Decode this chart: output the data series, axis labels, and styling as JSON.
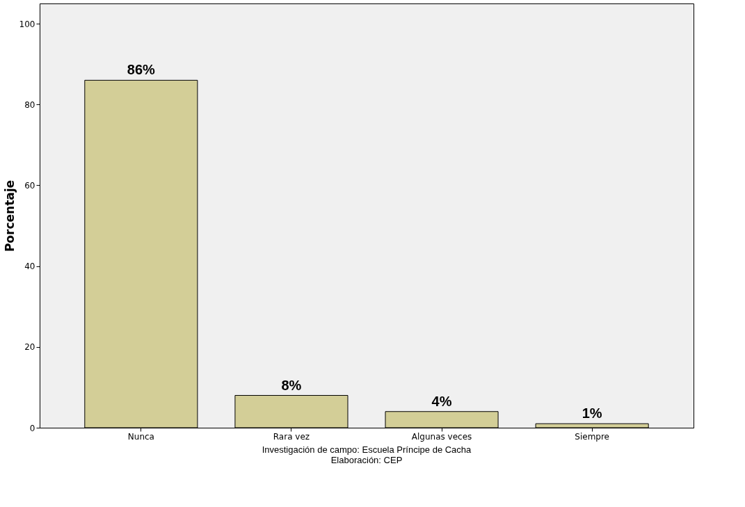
{
  "chart_data": {
    "type": "bar",
    "ylabel": "Porcentaje",
    "categories": [
      "Nunca",
      "Rara vez",
      "Algunas veces",
      "Siempre"
    ],
    "values": [
      86,
      8,
      4,
      1
    ],
    "value_labels": [
      "86%",
      "8%",
      "4%",
      "1%"
    ],
    "color": "#d3ce97",
    "ylim": [
      0,
      105
    ],
    "yticks": [
      0,
      20,
      40,
      60,
      80,
      100
    ],
    "grid": false,
    "annotations": [
      "Investigación de campo: Escuela Príncipe de Cacha",
      "Elaboración: CEP"
    ]
  }
}
